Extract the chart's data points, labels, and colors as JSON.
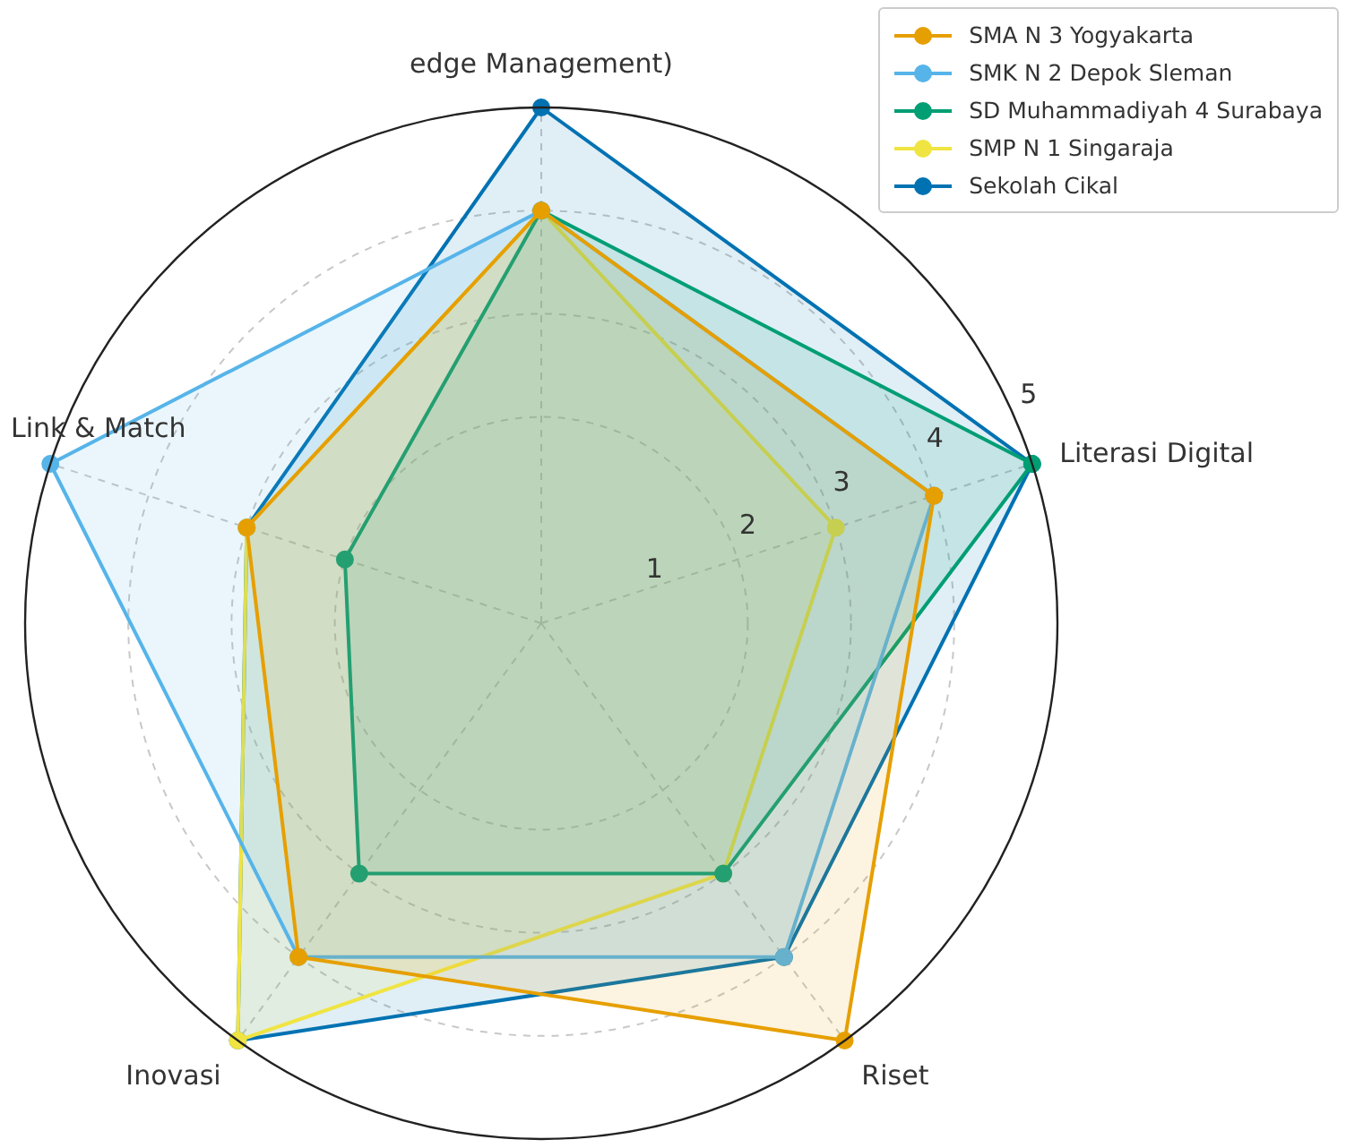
{
  "chart_data": {
    "type": "radar",
    "categories": [
      "edge Management)",
      "Literasi Digital",
      "Riset",
      "Inovasi",
      "Link & Match"
    ],
    "series": [
      {
        "name": "SMA N 3 Yogyakarta",
        "color": "#e69f00",
        "values": [
          4,
          4,
          5,
          4,
          3
        ]
      },
      {
        "name": "SMK N 2 Depok Sleman",
        "color": "#56b4e9",
        "values": [
          4,
          4,
          4,
          4,
          5
        ]
      },
      {
        "name": "SD Muhammadiyah 4 Surabaya",
        "color": "#009e73",
        "values": [
          4,
          5,
          3,
          3,
          2
        ]
      },
      {
        "name": "SMP N 1 Singaraja",
        "color": "#f0e442",
        "values": [
          4,
          3,
          3,
          5,
          3
        ]
      },
      {
        "name": "Sekolah Cikal",
        "color": "#0072b2",
        "values": [
          5,
          5,
          4,
          5,
          3
        ]
      }
    ],
    "ylim": [
      0,
      5
    ],
    "yticks": [
      1,
      2,
      3,
      4,
      5
    ],
    "grid": true,
    "legend": "top right",
    "marker": "circle"
  }
}
